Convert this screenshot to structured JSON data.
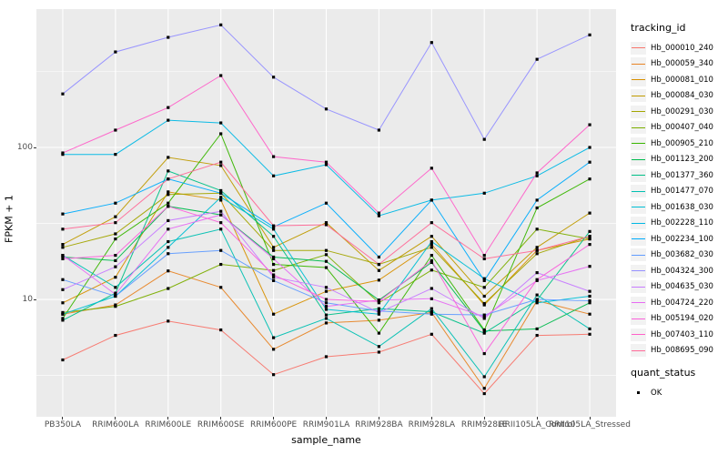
{
  "figure": {
    "panel_bg": "#EBEBEB",
    "grid_major_color": "#FFFFFF",
    "grid_minor_color": "#FFFFFF",
    "tick_text_color": "#4D4D4D",
    "marker_color": "#000000"
  },
  "axes": {
    "x_title": "sample_name",
    "y_title": "FPKM + 1",
    "y_tick_labels": [
      {
        "label": "100",
        "value": 100
      },
      {
        "label": "10",
        "value": 10
      }
    ]
  },
  "legend": {
    "tracking_title": "tracking_id",
    "quant_title": "quant_status",
    "quant_items": [
      {
        "label": "OK",
        "marker": "black-square-icon"
      }
    ]
  },
  "chart_data": {
    "type": "line",
    "title": "",
    "xlabel": "sample_name",
    "ylabel": "FPKM + 1",
    "y_scale": "log10",
    "ylim": [
      1.69,
      813
    ],
    "y_major_gridlines": [
      100,
      10
    ],
    "y_minor_gridlines": [
      316.23,
      31.62,
      3.162
    ],
    "grid": "on",
    "legend_position": "right",
    "point_marker": "black-square",
    "categories": [
      "PB350LA",
      "RRIM600LA",
      "RRIM600LE",
      "RRIM600SE",
      "RRIM600PE",
      "RRIM901LA",
      "RRIM928BA",
      "RRIM928LA",
      "RRIM928LE",
      "RRII105LA_Control",
      "RRII105LA_Stressed"
    ],
    "series": [
      {
        "name": "Hb_000010_240",
        "color": "#F8766D",
        "values": [
          4.0,
          5.8,
          7.2,
          6.3,
          3.2,
          4.2,
          4.5,
          5.9,
          2.4,
          5.8,
          5.9
        ]
      },
      {
        "name": "Hb_000059_340",
        "color": "#E88526",
        "values": [
          8.0,
          9.2,
          15.4,
          12.0,
          4.7,
          7.0,
          7.3,
          8.2,
          2.6,
          9.8,
          8.0
        ]
      },
      {
        "name": "Hb_000081_010",
        "color": "#D89000",
        "values": [
          9.5,
          14.0,
          51,
          45,
          8.0,
          11.3,
          13.4,
          23,
          9.2,
          21,
          25
        ]
      },
      {
        "name": "Hb_000084_030",
        "color": "#C09B00",
        "values": [
          23,
          35,
          86,
          76,
          22,
          32,
          15.5,
          26,
          10.5,
          22,
          37
        ]
      },
      {
        "name": "Hb_000291_030",
        "color": "#A3A500",
        "values": [
          22,
          27,
          49,
          50,
          21,
          21,
          17,
          22,
          9.4,
          20,
          26
        ]
      },
      {
        "name": "Hb_000407_040",
        "color": "#7CAE00",
        "values": [
          8.2,
          9.0,
          11.8,
          17,
          15.5,
          19.7,
          9.5,
          15.6,
          12.0,
          29,
          25
        ]
      },
      {
        "name": "Hb_000905_210",
        "color": "#39B600",
        "values": [
          7.5,
          25,
          43,
          123,
          17,
          16.2,
          6.0,
          19.5,
          6.3,
          40,
          62
        ]
      },
      {
        "name": "Hb_001123_200",
        "color": "#00BB4E",
        "values": [
          19,
          18,
          41,
          36,
          19,
          17.8,
          9.9,
          17.5,
          6.2,
          6.4,
          9.5
        ]
      },
      {
        "name": "Hb_001377_360",
        "color": "#00C087",
        "values": [
          7.3,
          11,
          70,
          52,
          26,
          7.9,
          8.7,
          8.3,
          6.0,
          9.9,
          28
        ]
      },
      {
        "name": "Hb_001477_070",
        "color": "#00C0B2",
        "values": [
          19.5,
          12,
          24,
          29,
          5.6,
          7.5,
          4.9,
          8.7,
          3.1,
          10.7,
          6.4
        ]
      },
      {
        "name": "Hb_001638_030",
        "color": "#00BFD4",
        "values": [
          8.0,
          10.5,
          22,
          47,
          29,
          8.6,
          8.0,
          24,
          13.7,
          9.5,
          10.5
        ]
      },
      {
        "name": "Hb_002228_110",
        "color": "#00B8E5",
        "values": [
          90,
          90,
          151,
          145,
          65,
          77,
          35.5,
          45,
          50,
          65,
          100
        ]
      },
      {
        "name": "Hb_002234_100",
        "color": "#00ACFC",
        "values": [
          36.5,
          43,
          62,
          50,
          30,
          43,
          19,
          45,
          13.3,
          45,
          80
        ]
      },
      {
        "name": "Hb_003682_030",
        "color": "#619CFF",
        "values": [
          13.5,
          10.5,
          20,
          21,
          13.3,
          9.5,
          8.4,
          8.0,
          7.9,
          10,
          9.8
        ]
      },
      {
        "name": "Hb_004324_300",
        "color": "#9590FF",
        "values": [
          225,
          425,
          530,
          640,
          290,
          179,
          130,
          490,
          113,
          380,
          550
        ]
      },
      {
        "name": "Hb_004635_030",
        "color": "#C77CFF",
        "values": [
          11.6,
          16.4,
          33,
          38,
          14,
          12,
          8.2,
          11.8,
          7.5,
          15,
          11.3
        ]
      },
      {
        "name": "Hb_004724_220",
        "color": "#E76BF3",
        "values": [
          19.5,
          10.8,
          29,
          36,
          18.5,
          9.0,
          9.9,
          10.1,
          7.7,
          13.3,
          16.5
        ]
      },
      {
        "name": "Hb_005194_020",
        "color": "#FA62DB",
        "values": [
          18.5,
          19.5,
          41,
          32,
          14.5,
          10.0,
          9.7,
          18.0,
          4.4,
          13.5,
          23
        ]
      },
      {
        "name": "Hb_007403_110",
        "color": "#FF61C9",
        "values": [
          92,
          130,
          183,
          297,
          87,
          80,
          37,
          73,
          19.5,
          68,
          141
        ]
      },
      {
        "name": "Hb_008695_090",
        "color": "#FF6A98",
        "values": [
          29,
          32,
          62,
          80,
          30.5,
          31,
          17,
          32,
          18.5,
          21,
          26
        ]
      }
    ]
  }
}
